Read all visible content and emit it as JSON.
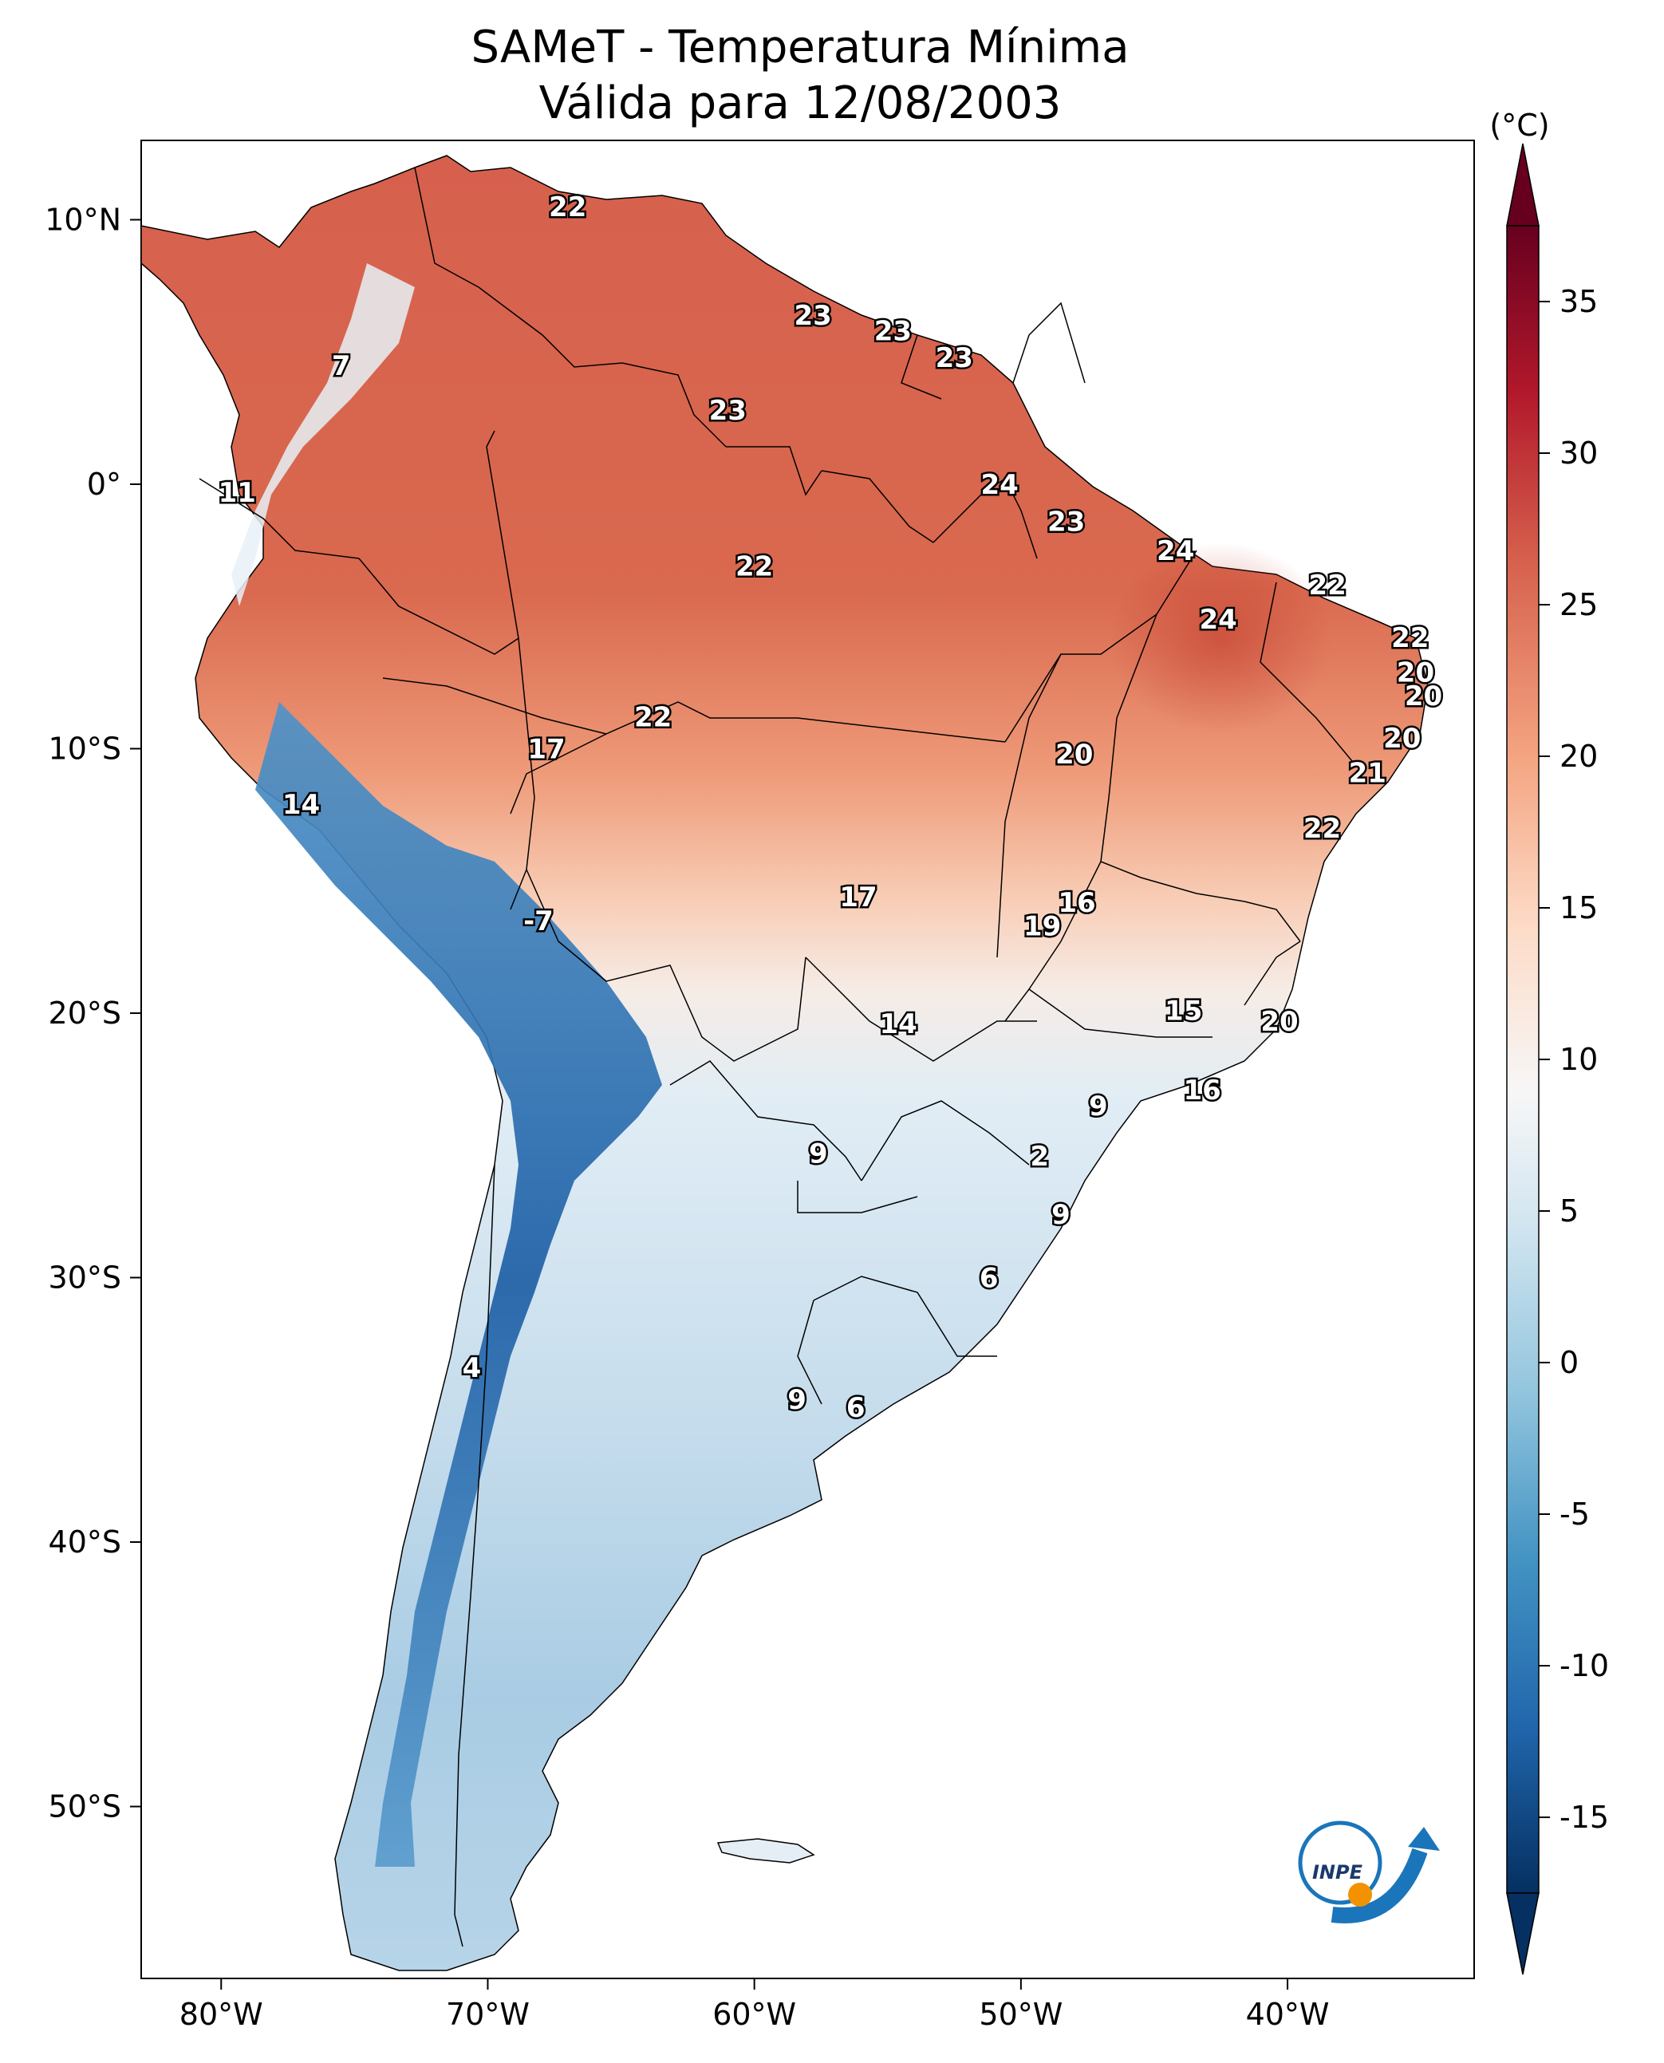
{
  "title": {
    "line1": "SAMeT - Temperatura Mínima",
    "line2": "Válida para 12/08/2003"
  },
  "axes": {
    "lon_ticks": [
      "80°W",
      "70°W",
      "60°W",
      "50°W",
      "40°W"
    ],
    "lat_ticks": [
      "10°N",
      "0°",
      "10°S",
      "20°S",
      "30°S",
      "40°S",
      "50°S"
    ]
  },
  "colorbar": {
    "unit": "(°C)",
    "ticks": [
      "35",
      "30",
      "25",
      "20",
      "15",
      "10",
      "5",
      "0",
      "-5",
      "-10",
      "-15"
    ],
    "colors": [
      "#67001f",
      "#b2182b",
      "#d6604d",
      "#f4a582",
      "#fddbc7",
      "#f7f7f7",
      "#d1e5f0",
      "#92c5de",
      "#4393c3",
      "#2166ac",
      "#053061"
    ]
  },
  "station_labels": [
    {
      "text": "22",
      "lon": -67.0,
      "lat": 10.5
    },
    {
      "text": "7",
      "lon": -75.5,
      "lat": 4.5
    },
    {
      "text": "23",
      "lon": -57.8,
      "lat": 6.4
    },
    {
      "text": "23",
      "lon": -54.8,
      "lat": 5.8
    },
    {
      "text": "23",
      "lon": -52.5,
      "lat": 4.8
    },
    {
      "text": "23",
      "lon": -61.0,
      "lat": 2.8
    },
    {
      "text": "11",
      "lon": -79.4,
      "lat": -0.3
    },
    {
      "text": "24",
      "lon": -50.8,
      "lat": 0.0
    },
    {
      "text": "23",
      "lon": -48.3,
      "lat": -1.4
    },
    {
      "text": "24",
      "lon": -44.2,
      "lat": -2.5
    },
    {
      "text": "22",
      "lon": -60.0,
      "lat": -3.1
    },
    {
      "text": "22",
      "lon": -38.5,
      "lat": -3.8
    },
    {
      "text": "24",
      "lon": -42.6,
      "lat": -5.1
    },
    {
      "text": "22",
      "lon": -35.4,
      "lat": -5.8
    },
    {
      "text": "20",
      "lon": -35.2,
      "lat": -7.1
    },
    {
      "text": "20",
      "lon": -34.9,
      "lat": -8.0
    },
    {
      "text": "22",
      "lon": -63.8,
      "lat": -8.8
    },
    {
      "text": "17",
      "lon": -67.8,
      "lat": -10.0
    },
    {
      "text": "20",
      "lon": -48.0,
      "lat": -10.2
    },
    {
      "text": "20",
      "lon": -35.7,
      "lat": -9.6
    },
    {
      "text": "21",
      "lon": -37.0,
      "lat": -10.9
    },
    {
      "text": "14",
      "lon": -77.0,
      "lat": -12.1
    },
    {
      "text": "22",
      "lon": -38.7,
      "lat": -13.0
    },
    {
      "text": "17",
      "lon": -56.1,
      "lat": -15.6
    },
    {
      "text": "16",
      "lon": -47.9,
      "lat": -15.8
    },
    {
      "text": "19",
      "lon": -49.2,
      "lat": -16.7
    },
    {
      "text": "-7",
      "lon": -68.1,
      "lat": -16.5
    },
    {
      "text": "15",
      "lon": -43.9,
      "lat": -19.9
    },
    {
      "text": "14",
      "lon": -54.6,
      "lat": -20.4
    },
    {
      "text": "20",
      "lon": -40.3,
      "lat": -20.3
    },
    {
      "text": "16",
      "lon": -43.2,
      "lat": -22.9
    },
    {
      "text": "9",
      "lon": -47.1,
      "lat": -23.5
    },
    {
      "text": "9",
      "lon": -57.6,
      "lat": -25.3
    },
    {
      "text": "2",
      "lon": -49.3,
      "lat": -25.4
    },
    {
      "text": "9",
      "lon": -48.5,
      "lat": -27.6
    },
    {
      "text": "6",
      "lon": -51.2,
      "lat": -30.0
    },
    {
      "text": "4",
      "lon": -70.6,
      "lat": -33.4
    },
    {
      "text": "9",
      "lon": -58.4,
      "lat": -34.6
    },
    {
      "text": "6",
      "lon": -56.2,
      "lat": -34.9
    }
  ],
  "logo": {
    "text": "INPE"
  }
}
